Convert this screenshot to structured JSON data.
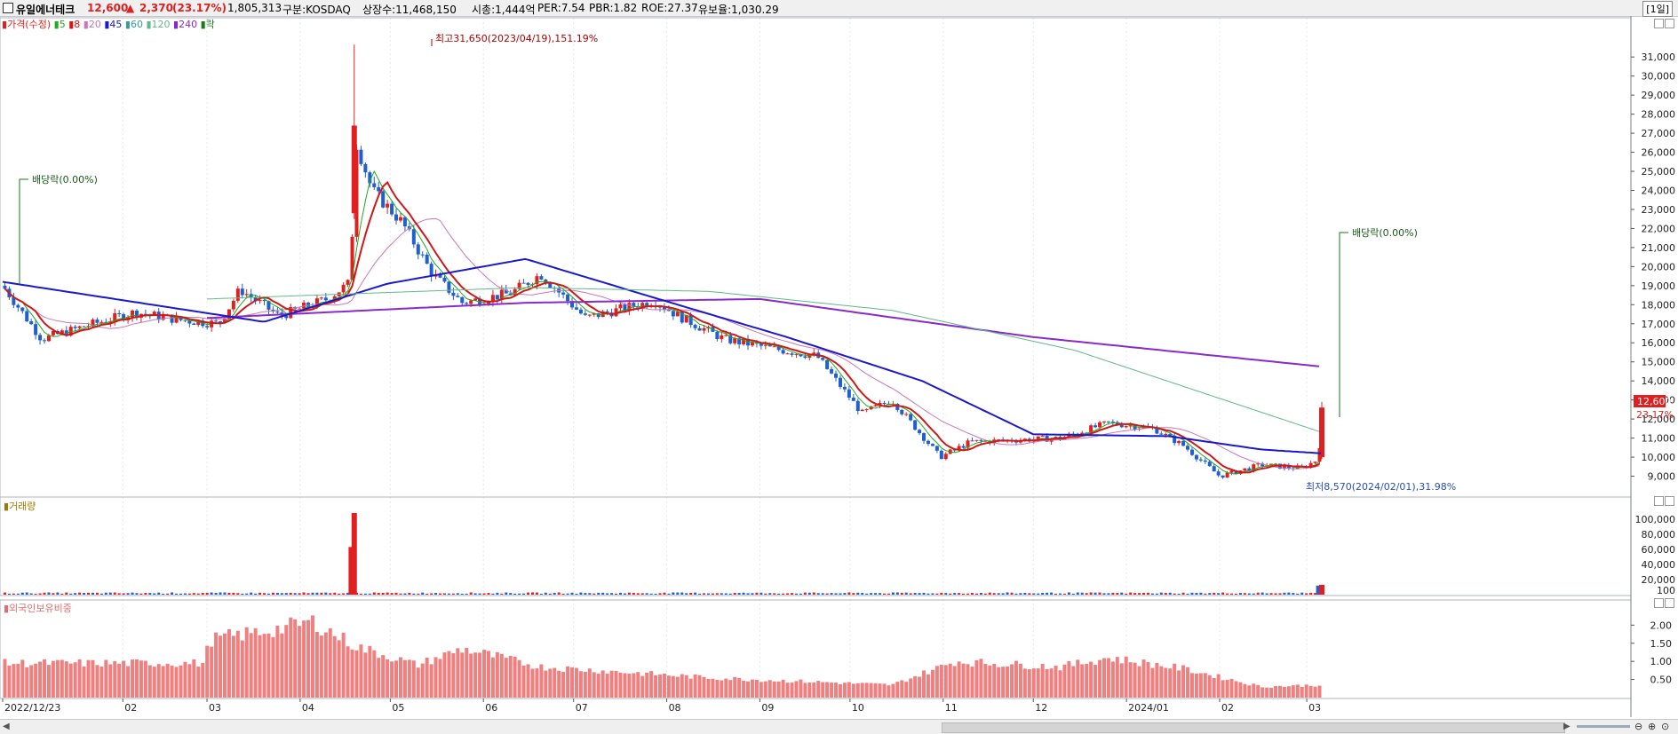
{
  "header": {
    "name": "유일에너테크",
    "price": "12,600",
    "change_arrow": "▲",
    "change": "2,370",
    "change_pct": "(23.17%)",
    "volume": "1,805,313",
    "market": "구분:KOSDAQ",
    "shares": "상장수:11,468,150",
    "mcap": "시총:1,444억",
    "per": "PER:7.54",
    "pbr": "PBR:1.82",
    "roe": "ROE:27.37",
    "reserve": "유보율:1,030.29",
    "period": "[1일]"
  },
  "legend": {
    "price": "가격(수정)",
    "ma5": "5",
    "ma8": "8",
    "ma20": "20",
    "ma45": "45",
    "ma60": "60",
    "ma120": "120",
    "ma240": "240",
    "ex": "락"
  },
  "panes": {
    "volume_title": "거래량",
    "foreign_title": "외국인보유비중"
  },
  "annotations": {
    "high": "최고31,650(2023/04/19),151.19%",
    "low": "최저8,570(2024/02/01),31.98%",
    "div1": "배당락(0.00%)",
    "div2": "배당락(0.00%)",
    "price_box": "12,600",
    "pct_label": "23.17%"
  },
  "colors": {
    "up": "#e02020",
    "down": "#1f5fd0",
    "ma5": "#22aa22",
    "ma8": "#d01818",
    "ma20": "#c878b8",
    "ma45": "#1a1ac8",
    "ma60": "#3a9aa0",
    "ma120": "#5fb88a",
    "ma240": "#8a2ac8",
    "foreign": "#f08080"
  },
  "chart_data": [
    {
      "type": "candlestick",
      "pane": "price",
      "y_ticks": [
        "9,000",
        "10,000",
        "11,000",
        "12,000",
        "13,000",
        "14,000",
        "15,000",
        "16,000",
        "17,000",
        "18,000",
        "19,000",
        "20,000",
        "21,000",
        "22,000",
        "23,000",
        "24,000",
        "25,000",
        "26,000",
        "27,000",
        "28,000",
        "29,000",
        "30,000",
        "31,000"
      ],
      "ylim": [
        8000,
        32500
      ],
      "x_labels": [
        "2022/12/23",
        "02",
        "03",
        "04",
        "05",
        "06",
        "07",
        "08",
        "09",
        "10",
        "11",
        "12",
        "2024/01",
        "02",
        "03"
      ],
      "close_path": [
        [
          "2022-12-23",
          19000
        ],
        [
          "2023-01-05",
          16200
        ],
        [
          "2023-01-20",
          16900
        ],
        [
          "2023-02-05",
          17600
        ],
        [
          "2023-02-20",
          17200
        ],
        [
          "2023-03-05",
          17000
        ],
        [
          "2023-03-12",
          18800
        ],
        [
          "2023-03-25",
          17400
        ],
        [
          "2023-04-10",
          18300
        ],
        [
          "2023-04-18",
          19200
        ],
        [
          "2023-04-19",
          26800
        ],
        [
          "2023-04-25",
          24000
        ],
        [
          "2023-05-05",
          22300
        ],
        [
          "2023-05-15",
          19600
        ],
        [
          "2023-05-25",
          18100
        ],
        [
          "2023-06-10",
          18600
        ],
        [
          "2023-06-20",
          19600
        ],
        [
          "2023-07-05",
          17300
        ],
        [
          "2023-07-20",
          17900
        ],
        [
          "2023-07-28",
          18200
        ],
        [
          "2023-08-05",
          17400
        ],
        [
          "2023-08-20",
          16200
        ],
        [
          "2023-09-05",
          15700
        ],
        [
          "2023-09-20",
          15300
        ],
        [
          "2023-10-05",
          12300
        ],
        [
          "2023-10-15",
          13000
        ],
        [
          "2023-10-31",
          10000
        ],
        [
          "2023-11-10",
          10800
        ],
        [
          "2023-11-25",
          10900
        ],
        [
          "2023-12-10",
          11000
        ],
        [
          "2023-12-26",
          11800
        ],
        [
          "2024-01-10",
          11500
        ],
        [
          "2024-01-20",
          10600
        ],
        [
          "2024-02-01",
          9000
        ],
        [
          "2024-02-15",
          9600
        ],
        [
          "2024-02-28",
          9400
        ],
        [
          "2024-03-05",
          9900
        ],
        [
          "2024-03-06",
          12600
        ]
      ],
      "high": {
        "value": 31650,
        "date": "2023/04/19",
        "pct": 151.19
      },
      "low": {
        "value": 8570,
        "date": "2024/02/01",
        "pct": 31.98
      },
      "last": {
        "value": 12600,
        "pct": 23.17
      },
      "moving_averages": [
        {
          "name": "240",
          "path": [
            [
              "2023-03-01",
              17300
            ],
            [
              "2023-06-15",
              18100
            ],
            [
              "2023-09-01",
              18300
            ],
            [
              "2023-12-01",
              16300
            ],
            [
              "2024-03-06",
              14750
            ]
          ]
        },
        {
          "name": "45",
          "path": [
            [
              "2022-12-23",
              19200
            ],
            [
              "2023-03-20",
              17100
            ],
            [
              "2023-04-30",
              19100
            ],
            [
              "2023-06-15",
              20400
            ],
            [
              "2023-07-25",
              18500
            ],
            [
              "2023-09-10",
              16300
            ],
            [
              "2023-10-25",
              14000
            ],
            [
              "2023-12-01",
              11200
            ],
            [
              "2024-01-15",
              11100
            ],
            [
              "2024-02-15",
              10400
            ],
            [
              "2024-03-06",
              10200
            ]
          ]
        },
        {
          "name": "120",
          "path": [
            [
              "2023-03-01",
              18300
            ],
            [
              "2023-06-15",
              18900
            ],
            [
              "2023-08-15",
              18700
            ],
            [
              "2023-10-15",
              17700
            ],
            [
              "2023-12-15",
              15600
            ],
            [
              "2024-03-06",
              11300
            ]
          ]
        }
      ]
    },
    {
      "type": "bar",
      "pane": "volume",
      "y_ticks": [
        "100,000",
        "80,000",
        "60,000",
        "40,000",
        "20,000",
        "100"
      ],
      "ylim": [
        0,
        115000
      ],
      "peaks": [
        [
          "2023-04-19",
          108000
        ],
        [
          "2023-04-18",
          63000
        ],
        [
          "2024-03-05",
          12000
        ],
        [
          "2024-03-06",
          13000
        ]
      ]
    },
    {
      "type": "bar",
      "pane": "foreign_ownership",
      "y_ticks": [
        "2.00",
        "1.50",
        "1.00",
        "0.50"
      ],
      "ylim": [
        0,
        2.4
      ],
      "path": [
        [
          "2022-12-23",
          0.95
        ],
        [
          "2023-02-28",
          0.95
        ],
        [
          "2023-03-02",
          1.6
        ],
        [
          "2023-03-25",
          1.9
        ],
        [
          "2023-04-05",
          2.1
        ],
        [
          "2023-04-20",
          1.4
        ],
        [
          "2023-05-10",
          0.9
        ],
        [
          "2023-05-25",
          1.35
        ],
        [
          "2023-06-20",
          0.85
        ],
        [
          "2023-08-15",
          0.55
        ],
        [
          "2023-10-15",
          0.35
        ],
        [
          "2023-11-05",
          1.0
        ],
        [
          "2023-12-10",
          0.85
        ],
        [
          "2023-12-26",
          1.1
        ],
        [
          "2024-01-20",
          0.8
        ],
        [
          "2024-02-15",
          0.3
        ],
        [
          "2024-03-06",
          0.35
        ]
      ]
    }
  ]
}
